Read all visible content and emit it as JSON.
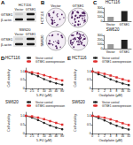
{
  "panel_labels": [
    "A",
    "B",
    "C",
    "D",
    "E"
  ],
  "blot": [
    {
      "cell_line": "HCT116",
      "lanes": [
        "Vector",
        "GTSE1"
      ],
      "rows": [
        "GTSE1",
        "β-actin"
      ]
    },
    {
      "cell_line": "SW620",
      "lanes": [
        "Vector",
        "GTSE1"
      ],
      "rows": [
        "GTSE1",
        "β-actin"
      ]
    }
  ],
  "colony": {
    "columns": [
      "Vector",
      "GTSE1"
    ],
    "rows": [
      "HCT116",
      "SW620"
    ]
  },
  "chart_data": [
    {
      "type": "bar",
      "title": "HCT116",
      "categories": [
        "Vector",
        "GTSE1"
      ],
      "values": [
        100,
        230
      ],
      "colors": [
        "#999999",
        "#222222"
      ],
      "ylim": [
        0,
        300
      ],
      "yticks": [
        0,
        100,
        200,
        300
      ]
    },
    {
      "type": "bar",
      "title": "SW620",
      "categories": [
        "Vector",
        "GTSE1"
      ],
      "values": [
        100,
        200
      ],
      "colors": [
        "#999999",
        "#222222"
      ],
      "ylim": [
        0,
        300
      ],
      "yticks": [
        0,
        100,
        200,
        300
      ]
    },
    {
      "type": "line",
      "title": "HCT116",
      "xlabel": "5-FU (μM)",
      "ylabel": "Cell viability",
      "categories": [
        "0",
        "2.5",
        "5",
        "10",
        "20",
        "40",
        "80"
      ],
      "series": [
        {
          "name": "Vector control",
          "color": "#222222",
          "marker": "circle",
          "values": [
            1,
            0.86,
            0.72,
            0.55,
            0.41,
            0.3,
            0.22
          ]
        },
        {
          "name": "GTSE1 overexpression",
          "color": "#e03030",
          "marker": "square",
          "values": [
            1,
            0.95,
            0.88,
            0.78,
            0.67,
            0.56,
            0.47
          ]
        }
      ],
      "ylim": [
        0,
        1.2
      ],
      "yticks": [
        0,
        0.5,
        {
          "value": 1,
          "label": "1.0"
        }
      ],
      "legend": "upper right"
    },
    {
      "type": "line",
      "title": "SW620",
      "xlabel": "5-FU (μM)",
      "ylabel": "Cell viability",
      "categories": [
        "0",
        "2.5",
        "5",
        "10",
        "20",
        "40",
        "80"
      ],
      "series": [
        {
          "name": "Vector control",
          "color": "#222222",
          "marker": "circle",
          "values": [
            1,
            0.9,
            0.76,
            0.6,
            0.45,
            0.33,
            0.24
          ]
        },
        {
          "name": "GTSE1 overexpression",
          "color": "#e03030",
          "marker": "square",
          "values": [
            1,
            0.97,
            0.9,
            0.81,
            0.7,
            0.6,
            0.5
          ]
        }
      ],
      "ylim": [
        0,
        1.2
      ],
      "yticks": [
        0,
        0.5,
        {
          "value": 1,
          "label": "1.0"
        }
      ],
      "legend": "upper right"
    },
    {
      "type": "line",
      "title": "HCT116",
      "xlabel": "Oxaliplatin (μM)",
      "ylabel": "Cell viability",
      "categories": [
        "0",
        "1",
        "2",
        "4",
        "8",
        "16",
        "32"
      ],
      "series": [
        {
          "name": "Vector control",
          "color": "#222222",
          "marker": "circle",
          "values": [
            1,
            0.84,
            0.7,
            0.54,
            0.4,
            0.29,
            0.2
          ]
        },
        {
          "name": "GTSE1 overexpression",
          "color": "#e03030",
          "marker": "square",
          "values": [
            1,
            0.94,
            0.86,
            0.76,
            0.65,
            0.54,
            0.44
          ]
        }
      ],
      "ylim": [
        0,
        1.2
      ],
      "yticks": [
        0,
        0.5,
        {
          "value": 1,
          "label": "1.0"
        }
      ],
      "legend": "upper right"
    },
    {
      "type": "line",
      "title": "SW620",
      "xlabel": "Oxaliplatin (μM)",
      "ylabel": "Cell viability",
      "categories": [
        "0",
        "1",
        "2",
        "4",
        "8",
        "16",
        "32"
      ],
      "series": [
        {
          "name": "Vector control",
          "color": "#222222",
          "marker": "circle",
          "values": [
            1,
            0.88,
            0.74,
            0.58,
            0.44,
            0.32,
            0.23
          ]
        },
        {
          "name": "GTSE1 overexpression",
          "color": "#e03030",
          "marker": "square",
          "values": [
            1,
            0.96,
            0.89,
            0.8,
            0.69,
            0.58,
            0.48
          ]
        }
      ],
      "ylim": [
        0,
        1.2
      ],
      "yticks": [
        0,
        0.5,
        {
          "value": 1,
          "label": "1.0"
        }
      ],
      "legend": "upper right"
    }
  ]
}
